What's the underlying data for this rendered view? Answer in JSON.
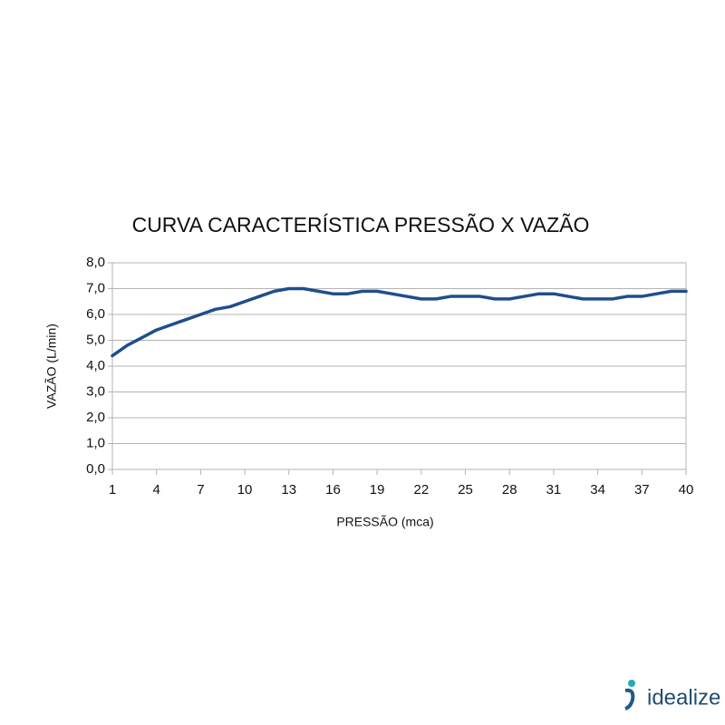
{
  "chart_data": {
    "type": "line",
    "title": "CURVA CARACTERÍSTICA PRESSÃO X VAZÃO",
    "x_label": "PRESSÃO (mca)",
    "y_label": "VAZÃO (L/min)",
    "x": [
      1,
      2,
      3,
      4,
      5,
      6,
      7,
      8,
      9,
      10,
      11,
      12,
      13,
      14,
      15,
      16,
      17,
      18,
      19,
      20,
      21,
      22,
      23,
      24,
      25,
      26,
      27,
      28,
      29,
      30,
      31,
      32,
      33,
      34,
      35,
      36,
      37,
      38,
      39,
      40
    ],
    "series": [
      {
        "color": "#1f4e8c",
        "values": [
          4.4,
          4.8,
          5.1,
          5.4,
          5.6,
          5.8,
          6.0,
          6.2,
          6.3,
          6.5,
          6.7,
          6.9,
          7.0,
          7.0,
          6.9,
          6.8,
          6.8,
          6.9,
          6.9,
          6.8,
          6.7,
          6.6,
          6.6,
          6.7,
          6.7,
          6.7,
          6.6,
          6.6,
          6.7,
          6.8,
          6.8,
          6.7,
          6.6,
          6.6,
          6.6,
          6.7,
          6.7,
          6.8,
          6.9,
          6.9
        ]
      }
    ],
    "xlim": [
      1,
      40
    ],
    "xticks": [
      1,
      4,
      7,
      10,
      13,
      16,
      19,
      22,
      25,
      28,
      31,
      34,
      37,
      40
    ],
    "ylim": [
      0,
      8
    ],
    "yticks": [
      {
        "value": 0,
        "label": "0,0"
      },
      {
        "value": 1,
        "label": "1,0"
      },
      {
        "value": 2,
        "label": "2,0"
      },
      {
        "value": 3,
        "label": "3,0"
      },
      {
        "value": 4,
        "label": "4,0"
      },
      {
        "value": 5,
        "label": "5,0"
      },
      {
        "value": 6,
        "label": "6,0"
      },
      {
        "value": 7,
        "label": "7,0"
      },
      {
        "value": 8,
        "label": "8,0"
      }
    ],
    "grid": true
  },
  "logo": "idealize"
}
